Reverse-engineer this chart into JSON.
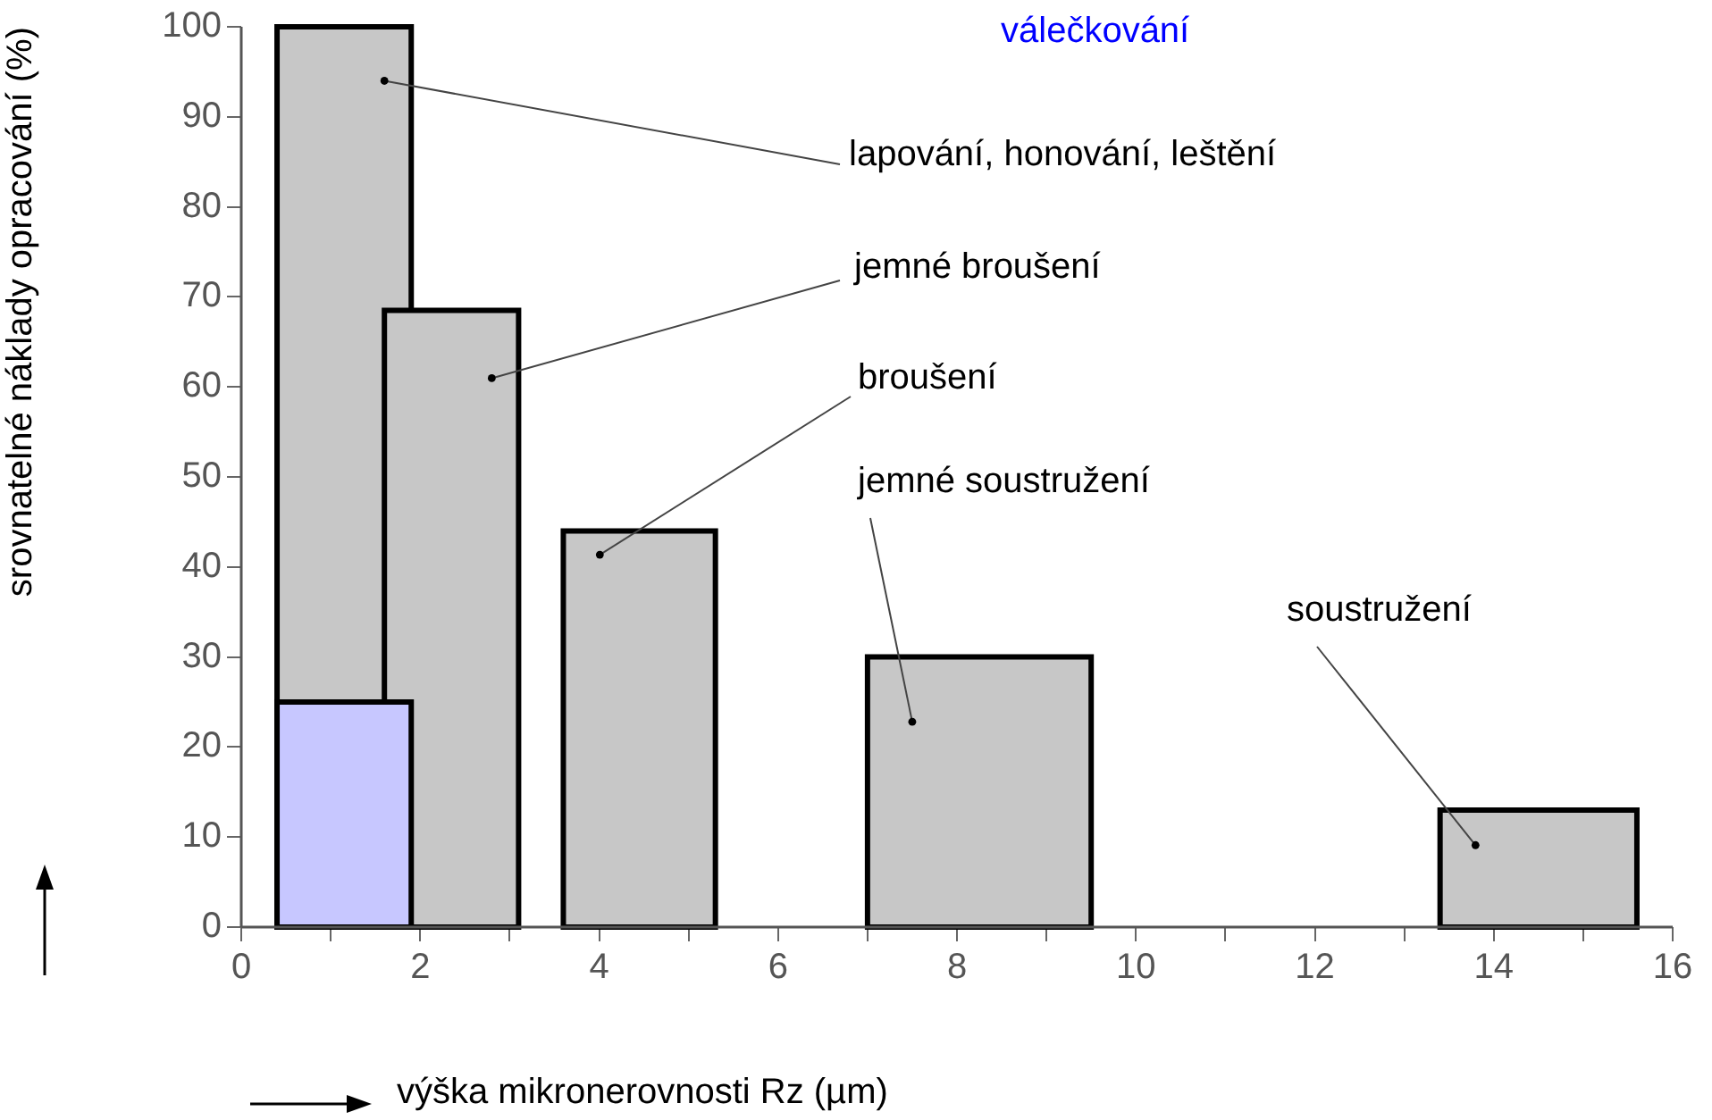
{
  "chart_data": {
    "type": "histogram",
    "xlabel": "výška mikronerovnosti Rz (µm)",
    "ylabel": "srovnatelné náklady opracování (%)",
    "xlim": [
      0,
      16
    ],
    "xticks": [
      0,
      {
        "value": 1,
        "label": null
      },
      2,
      {
        "value": 3,
        "label": null
      },
      4,
      {
        "value": 5,
        "label": null
      },
      6,
      {
        "value": 7,
        "label": null
      },
      8,
      {
        "value": 9,
        "label": null
      },
      10,
      {
        "value": 11,
        "label": null
      },
      12,
      {
        "value": 13,
        "label": null
      },
      14,
      {
        "value": 15,
        "label": null
      },
      16
    ],
    "ylim": [
      0,
      100
    ],
    "yticks": [
      0,
      10,
      20,
      30,
      40,
      50,
      60,
      70,
      80,
      90,
      100
    ],
    "bins": [
      0.4,
      1.9,
      3.6,
      5.3,
      7.0,
      9.5,
      13.4,
      15.6
    ],
    "series": [
      {
        "color": "#000000",
        "values": [
          100,
          null,
          44,
          null,
          30,
          null,
          13
        ]
      },
      {
        "color": "#000000",
        "bins": [
          1.6,
          3.1
        ],
        "values": [
          68.5
        ]
      },
      {
        "name": "válečkování",
        "color": "#0000ff",
        "bins": [
          0.4,
          1.9
        ],
        "values": [
          25
        ]
      }
    ],
    "annotations": [
      "lapování, honování, leštění",
      "jemné broušení",
      "broušení",
      "jemné soustružení",
      "soustružení"
    ]
  }
}
